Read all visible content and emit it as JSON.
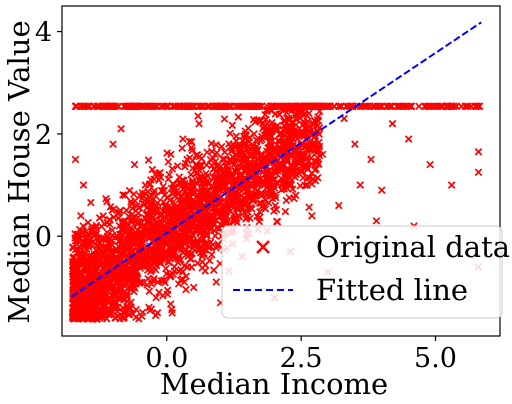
{
  "chart_data": {
    "type": "scatter",
    "title": "",
    "xlabel": "Median Income",
    "ylabel": "Median House Value",
    "xlim": [
      -1.95,
      6.2
    ],
    "ylim": [
      -1.95,
      4.5
    ],
    "xticks": [
      0.0,
      2.5,
      5.0
    ],
    "xtick_labels": [
      "0.0",
      "2.5",
      "5.0"
    ],
    "yticks": [
      0,
      2,
      4
    ],
    "ytick_labels": [
      "0",
      "2",
      "4"
    ],
    "grid": false,
    "legend_position": "bottom-right",
    "series": [
      {
        "name": "Original data",
        "kind": "scatter",
        "marker": "x",
        "color": "#ff0000",
        "cap_value": 2.54,
        "points": [
          [
            -1.7,
            2.54
          ],
          [
            -1.5,
            2.54
          ],
          [
            -1.2,
            2.54
          ],
          [
            -0.9,
            2.54
          ],
          [
            -0.55,
            2.54
          ],
          [
            -0.3,
            2.54
          ],
          [
            0.0,
            2.54
          ],
          [
            0.4,
            2.54
          ],
          [
            0.8,
            2.54
          ],
          [
            1.2,
            2.54
          ],
          [
            1.6,
            2.54
          ],
          [
            2.0,
            2.54
          ],
          [
            2.4,
            2.54
          ],
          [
            2.8,
            2.54
          ],
          [
            3.2,
            2.54
          ],
          [
            3.6,
            2.54
          ],
          [
            4.0,
            2.54
          ],
          [
            4.4,
            2.54
          ],
          [
            4.8,
            2.54
          ],
          [
            5.2,
            2.54
          ],
          [
            5.8,
            2.54
          ],
          [
            -1.7,
            1.5
          ],
          [
            -1.55,
            1.0
          ],
          [
            -1.6,
            0.4
          ],
          [
            -1.45,
            -0.1
          ],
          [
            -1.75,
            -0.5
          ],
          [
            -1.55,
            -0.95
          ],
          [
            -1.4,
            -1.3
          ],
          [
            -1.6,
            -1.5
          ],
          [
            -1.25,
            -1.6
          ],
          [
            -1.0,
            1.8
          ],
          [
            -0.85,
            2.1
          ],
          [
            -0.6,
            1.4
          ],
          [
            -0.4,
            1.0
          ],
          [
            -0.2,
            0.6
          ],
          [
            -1.1,
            0.0
          ],
          [
            -0.8,
            -0.5
          ],
          [
            -0.5,
            -0.9
          ],
          [
            -0.2,
            -1.2
          ],
          [
            0.1,
            -1.5
          ],
          [
            0.3,
            1.9
          ],
          [
            0.6,
            2.2
          ],
          [
            0.9,
            1.6
          ],
          [
            1.2,
            1.2
          ],
          [
            1.5,
            0.9
          ],
          [
            1.8,
            1.4
          ],
          [
            0.4,
            0.2
          ],
          [
            0.8,
            -0.2
          ],
          [
            1.1,
            0.3
          ],
          [
            1.4,
            -0.4
          ],
          [
            0.5,
            -1.0
          ],
          [
            1.0,
            -1.3
          ],
          [
            2.2,
            1.8
          ],
          [
            2.6,
            2.0
          ],
          [
            2.9,
            1.6
          ],
          [
            2.4,
            0.8
          ],
          [
            2.7,
            0.4
          ],
          [
            2.3,
            -0.3
          ],
          [
            3.3,
            2.3
          ],
          [
            3.5,
            1.8
          ],
          [
            3.8,
            1.5
          ],
          [
            3.6,
            1.0
          ],
          [
            3.2,
            0.6
          ],
          [
            3.9,
            0.3
          ],
          [
            4.2,
            2.2
          ],
          [
            4.5,
            1.9
          ],
          [
            4.0,
            0.9
          ],
          [
            4.6,
            0.2
          ],
          [
            4.9,
            1.4
          ],
          [
            5.3,
            1.0
          ],
          [
            5.8,
            1.65
          ],
          [
            5.8,
            1.25
          ],
          [
            5.8,
            -0.6
          ],
          [
            2.0,
            -1.2
          ],
          [
            3.0,
            -0.7
          ]
        ]
      },
      {
        "name": "Fitted line",
        "kind": "line",
        "style": "dashed",
        "color": "#0000ff",
        "x": [
          -1.77,
          5.85
        ],
        "y": [
          -1.18,
          4.18
        ]
      }
    ]
  }
}
